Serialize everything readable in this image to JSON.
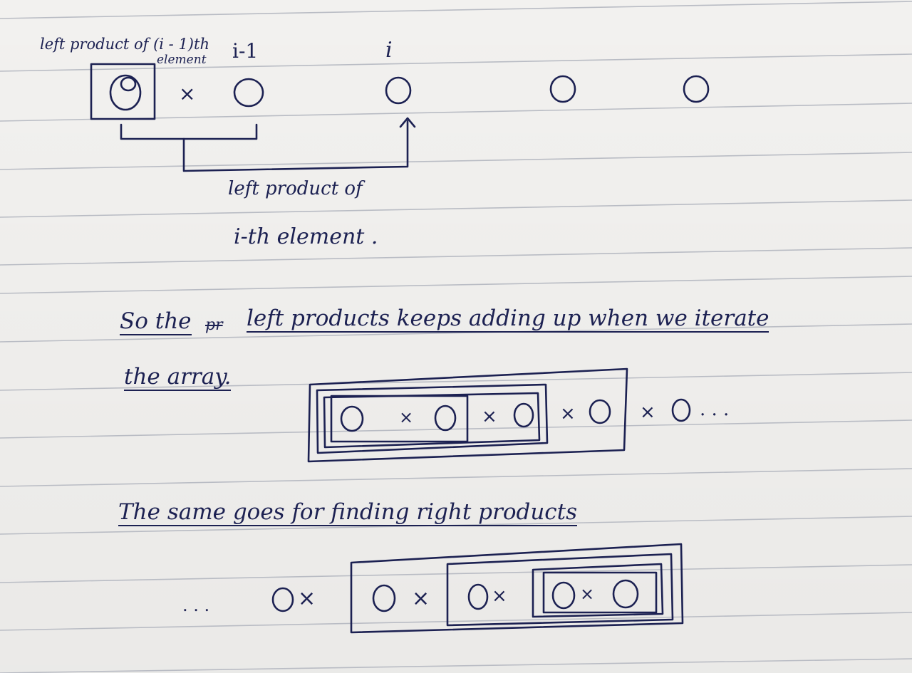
{
  "top_diagram": {
    "label_left_product": "left product of (i - 1)th",
    "label_element": "element",
    "label_i_minus_1": "i-1",
    "label_i": "i",
    "label_caption_line1": "left product of",
    "label_caption_line2": "i-th element ."
  },
  "paragraph_left": {
    "line1_a": "So the",
    "line1_struck": "pr",
    "line1_b": "left products keeps adding up when we iterate",
    "line2": "the array."
  },
  "left_chain": {
    "times": "×",
    "dots": ". . ."
  },
  "paragraph_right": {
    "line": "The same goes for finding right products"
  },
  "right_chain": {
    "lead_dots": ". . .",
    "times": "×"
  },
  "colors": {
    "ink": "#1c2152",
    "paper": "#f2f1ef",
    "rule": "#b9bcc4"
  }
}
